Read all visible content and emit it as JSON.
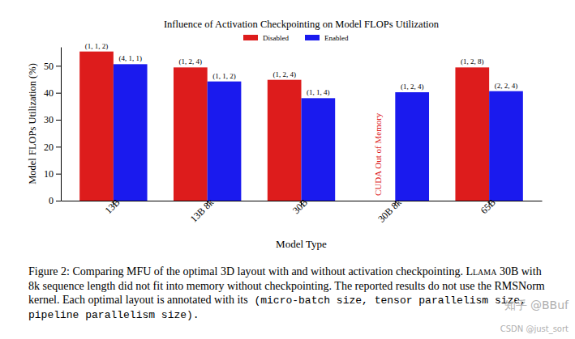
{
  "chart_data": {
    "type": "bar",
    "title": "Influence of Activation Checkpointing on Model FLOPs Utilization",
    "x_label": "Model Type",
    "y_label": "Model FLOPs Utilization (%)",
    "categories": [
      "13B",
      "13B 8k",
      "30B",
      "30B 8k",
      "65B"
    ],
    "series": [
      {
        "name": "Disabled",
        "color": "#dd1c1c",
        "values": [
          55.3,
          49.4,
          44.8,
          null,
          49.4
        ],
        "annotations": [
          "(1, 1, 2)",
          "(1, 2, 4)",
          "(1, 2, 4)",
          null,
          "(1, 2, 8)"
        ]
      },
      {
        "name": "Enabled",
        "color": "#1a1aee",
        "values": [
          50.6,
          44.2,
          38.0,
          40.2,
          40.6
        ],
        "annotations": [
          "(4, 1, 1)",
          "(1, 1, 2)",
          "(1, 1, 4)",
          "(1, 2, 4)",
          "(2, 2, 4)"
        ]
      }
    ],
    "annotations": [
      "CUDA Out of Memory"
    ],
    "caption": "Figure 2: Comparing MFU of the optimal 3D layout with and without activation checkpointing. Llama 30B with 8k sequence length did not fit into memory without checkpointing. The reported results do not use the RMSNorm kernel. Each optimal layout is annotated with its (micro-batch size, tensor parallelism size, pipeline parallelism size).",
    "watermarks": [
      "知乎 @BBuf",
      "CSDN @just_sort"
    ],
    "ylim": [
      0,
      57
    ],
    "yticks": [
      0,
      10,
      20,
      30,
      40,
      50
    ],
    "legend": "top",
    "grid": false
  }
}
